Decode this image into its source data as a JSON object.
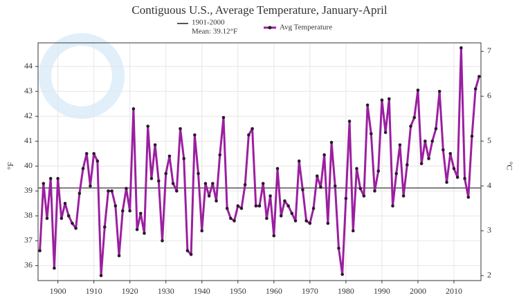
{
  "chart_data": {
    "type": "line",
    "title": "Contiguous U.S., Average Temperature, January-April",
    "y_label": "°F",
    "y2_label": "°C",
    "reference_line": {
      "label_lines": [
        "1901-2000",
        "Mean: 39.12°F"
      ],
      "value": 39.12,
      "color": "#555555"
    },
    "x": [
      1895,
      1896,
      1897,
      1898,
      1899,
      1900,
      1901,
      1902,
      1903,
      1904,
      1905,
      1906,
      1907,
      1908,
      1909,
      1910,
      1911,
      1912,
      1913,
      1914,
      1915,
      1916,
      1917,
      1918,
      1919,
      1920,
      1921,
      1922,
      1923,
      1924,
      1925,
      1926,
      1927,
      1928,
      1929,
      1930,
      1931,
      1932,
      1933,
      1934,
      1935,
      1936,
      1937,
      1938,
      1939,
      1940,
      1941,
      1942,
      1943,
      1944,
      1945,
      1946,
      1947,
      1948,
      1949,
      1950,
      1951,
      1952,
      1953,
      1954,
      1955,
      1956,
      1957,
      1958,
      1959,
      1960,
      1961,
      1962,
      1963,
      1964,
      1965,
      1966,
      1967,
      1968,
      1969,
      1970,
      1971,
      1972,
      1973,
      1974,
      1975,
      1976,
      1977,
      1978,
      1979,
      1980,
      1981,
      1982,
      1983,
      1984,
      1985,
      1986,
      1987,
      1988,
      1989,
      1990,
      1991,
      1992,
      1993,
      1994,
      1995,
      1996,
      1997,
      1998,
      1999,
      2000,
      2001,
      2002,
      2003,
      2004,
      2005,
      2006,
      2007,
      2008,
      2009,
      2010,
      2011,
      2012,
      2013,
      2014,
      2015,
      2016,
      2017
    ],
    "series": [
      {
        "name": "Avg Temperature",
        "color": "#9b1fa0",
        "marker_color": "#2a1a2a",
        "values": [
          36.6,
          39.3,
          37.9,
          39.5,
          35.9,
          39.5,
          37.9,
          38.5,
          38.0,
          37.7,
          37.5,
          38.9,
          39.9,
          40.5,
          39.2,
          40.5,
          40.2,
          35.6,
          37.55,
          39.0,
          39.0,
          38.4,
          36.4,
          38.2,
          39.1,
          38.2,
          42.3,
          37.45,
          38.1,
          37.3,
          41.6,
          39.5,
          40.85,
          39.4,
          37.0,
          39.7,
          40.4,
          39.3,
          39.0,
          41.5,
          40.3,
          36.6,
          36.45,
          41.25,
          39.7,
          37.4,
          39.3,
          38.8,
          39.3,
          38.6,
          40.45,
          41.95,
          38.3,
          37.9,
          37.8,
          38.4,
          38.3,
          39.25,
          41.25,
          41.5,
          38.4,
          38.4,
          39.3,
          37.9,
          38.8,
          37.2,
          39.9,
          38.0,
          38.6,
          38.4,
          38.1,
          37.8,
          40.2,
          39.05,
          37.8,
          37.7,
          38.3,
          39.6,
          39.15,
          40.45,
          37.7,
          40.95,
          39.2,
          36.7,
          35.65,
          38.7,
          41.8,
          37.4,
          39.9,
          39.1,
          38.8,
          42.45,
          41.3,
          39.0,
          39.8,
          42.65,
          41.35,
          42.7,
          38.4,
          39.7,
          40.85,
          38.8,
          40.05,
          41.6,
          41.95,
          43.05,
          40.1,
          41.0,
          40.3,
          41.0,
          41.5,
          43.0,
          40.65,
          39.35,
          40.5,
          39.9,
          39.55,
          44.75,
          39.5,
          38.75,
          41.2,
          43.1,
          43.6
        ]
      }
    ],
    "xlim": [
      1894.5,
      2017.5
    ],
    "xticks": [
      1900,
      1910,
      1920,
      1930,
      1940,
      1950,
      1960,
      1970,
      1980,
      1990,
      2000,
      2010
    ],
    "ylim": [
      35.4,
      44.95
    ],
    "yticks": [
      36,
      37,
      38,
      39,
      40,
      41,
      42,
      43,
      44
    ],
    "y2lim": [
      1.89,
      7.19
    ],
    "y2ticks": [
      2,
      3,
      4,
      5,
      6,
      7
    ],
    "grid": true
  }
}
